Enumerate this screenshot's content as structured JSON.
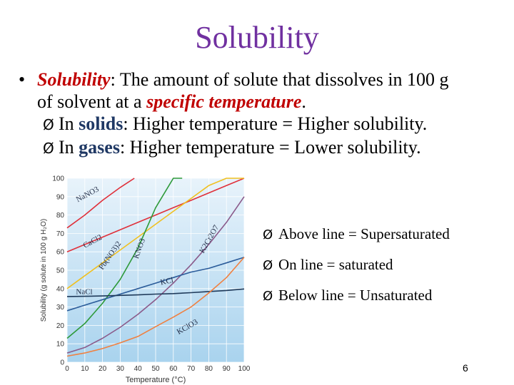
{
  "title": "Solubility",
  "definition": {
    "bullet": "•",
    "term": "Solubility",
    "text_a": ": The amount of solute that dissolves in 100 g",
    "text_b": "of solvent at a ",
    "emph": "specific temperature",
    "text_c": "."
  },
  "solids_line": {
    "arrow": "Ø",
    "pre": "In ",
    "term": "solids",
    "post": ": Higher temperature = Higher solubility."
  },
  "gases_line": {
    "arrow": "Ø",
    "pre": "In ",
    "term": "gases",
    "post": ": Higher temperature = Lower solubility."
  },
  "side_notes": [
    {
      "arrow": "Ø",
      "text": "Above line = Supersaturated"
    },
    {
      "arrow": "Ø",
      "text": "On line = saturated"
    },
    {
      "arrow": "Ø",
      "text": "Below line = Unsaturated"
    }
  ],
  "page_number": "6",
  "chart_data": {
    "type": "line",
    "xlabel": "Temperature (°C)",
    "ylabel": "Solubility (g solute in 100 g H₂O)",
    "xlim": [
      0,
      100
    ],
    "ylim": [
      0,
      100
    ],
    "x_ticks": [
      0,
      10,
      20,
      30,
      40,
      50,
      60,
      70,
      80,
      90,
      100
    ],
    "y_ticks": [
      0,
      10,
      20,
      30,
      40,
      50,
      60,
      70,
      80,
      90,
      100
    ],
    "grid": true,
    "series": [
      {
        "name": "NaNO3",
        "color": "#e0303a",
        "x": [
          0,
          10,
          20,
          30,
          38
        ],
        "y": [
          73,
          80,
          88,
          95,
          100
        ],
        "label_at": [
          6,
          87
        ],
        "label_rot": -28
      },
      {
        "name": "CaCl2",
        "color": "#e0303a",
        "x": [
          0,
          10,
          20,
          30,
          40,
          50,
          60,
          70,
          80,
          90,
          100
        ],
        "y": [
          60,
          64,
          68,
          72,
          76,
          80,
          84,
          88,
          92,
          96,
          100
        ],
        "label_at": [
          10,
          62
        ],
        "label_rot": -28
      },
      {
        "name": "Pb(NO3)2",
        "color": "#f0c020",
        "x": [
          0,
          10,
          20,
          30,
          40,
          50,
          60,
          70,
          80,
          90,
          100
        ],
        "y": [
          40,
          47,
          54,
          61,
          68,
          75,
          82,
          89,
          96,
          100,
          100
        ],
        "label_at": [
          20,
          50
        ],
        "label_rot": -55
      },
      {
        "name": "KNO3",
        "color": "#2e9a3a",
        "x": [
          0,
          10,
          20,
          30,
          40,
          50,
          60,
          65
        ],
        "y": [
          13,
          21,
          32,
          45,
          62,
          84,
          100,
          100
        ],
        "label_at": [
          40,
          56
        ],
        "label_rot": -70
      },
      {
        "name": "K2Cr2O7",
        "color": "#8a5a8a",
        "x": [
          0,
          10,
          20,
          30,
          40,
          50,
          60,
          70,
          80,
          90,
          100
        ],
        "y": [
          5,
          8,
          13,
          19,
          26,
          34,
          43,
          53,
          64,
          76,
          90
        ],
        "label_at": [
          77,
          59
        ],
        "label_rot": -60
      },
      {
        "name": "KCl",
        "color": "#2b5c9a",
        "x": [
          0,
          10,
          20,
          30,
          40,
          50,
          60,
          70,
          80,
          90,
          100
        ],
        "y": [
          28,
          31,
          34,
          37,
          40,
          43,
          46,
          49,
          51,
          54,
          57
        ],
        "label_at": [
          53,
          42
        ],
        "label_rot": -12
      },
      {
        "name": "NaCl",
        "color": "#1f3a5a",
        "x": [
          0,
          10,
          20,
          30,
          40,
          50,
          60,
          70,
          80,
          90,
          100
        ],
        "y": [
          35.7,
          35.8,
          36,
          36.3,
          36.6,
          37,
          37.3,
          37.8,
          38.4,
          39,
          39.8
        ],
        "label_at": [
          5,
          37
        ],
        "label_rot": 0
      },
      {
        "name": "KClO3",
        "color": "#f08040",
        "x": [
          0,
          10,
          20,
          30,
          40,
          50,
          60,
          70,
          80,
          90,
          100
        ],
        "y": [
          3.3,
          5,
          7.4,
          10.5,
          14,
          19.3,
          24.5,
          30,
          37.6,
          46,
          57
        ],
        "label_at": [
          63,
          15
        ],
        "label_rot": -30
      }
    ]
  }
}
